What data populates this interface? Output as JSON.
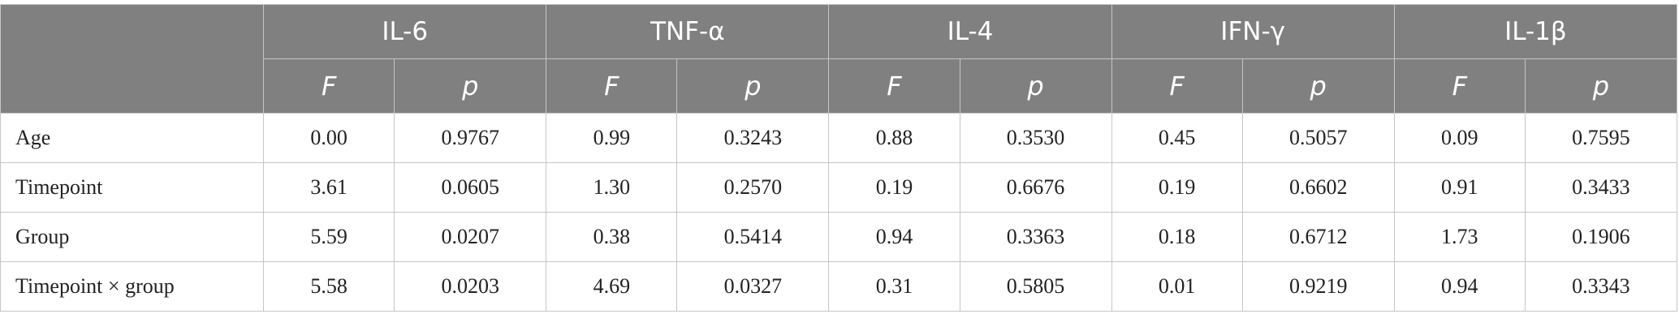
{
  "table": {
    "cytokines": [
      {
        "name": "IL-6",
        "stat_f": "F",
        "stat_p": "p"
      },
      {
        "name": "TNF-α",
        "stat_f": "F",
        "stat_p": "p"
      },
      {
        "name": "IL-4",
        "stat_f": "F",
        "stat_p": "p"
      },
      {
        "name": "IFN-γ",
        "stat_f": "F",
        "stat_p": "p"
      },
      {
        "name": "IL-1β",
        "stat_f": "F",
        "stat_p": "p"
      }
    ],
    "rows": [
      {
        "label": "Age",
        "values": [
          "0.00",
          "0.9767",
          "0.99",
          "0.3243",
          "0.88",
          "0.3530",
          "0.45",
          "0.5057",
          "0.09",
          "0.7595"
        ]
      },
      {
        "label": "Timepoint",
        "values": [
          "3.61",
          "0.0605",
          "1.30",
          "0.2570",
          "0.19",
          "0.6676",
          "0.19",
          "0.6602",
          "0.91",
          "0.3433"
        ]
      },
      {
        "label": "Group",
        "values": [
          "5.59",
          "0.0207",
          "0.38",
          "0.5414",
          "0.94",
          "0.3363",
          "0.18",
          "0.6712",
          "1.73",
          "0.1906"
        ]
      },
      {
        "label": "Timepoint × group",
        "values": [
          "5.58",
          "0.0203",
          "4.69",
          "0.0327",
          "0.31",
          "0.5805",
          "0.01",
          "0.9219",
          "0.94",
          "0.3343"
        ]
      }
    ]
  }
}
